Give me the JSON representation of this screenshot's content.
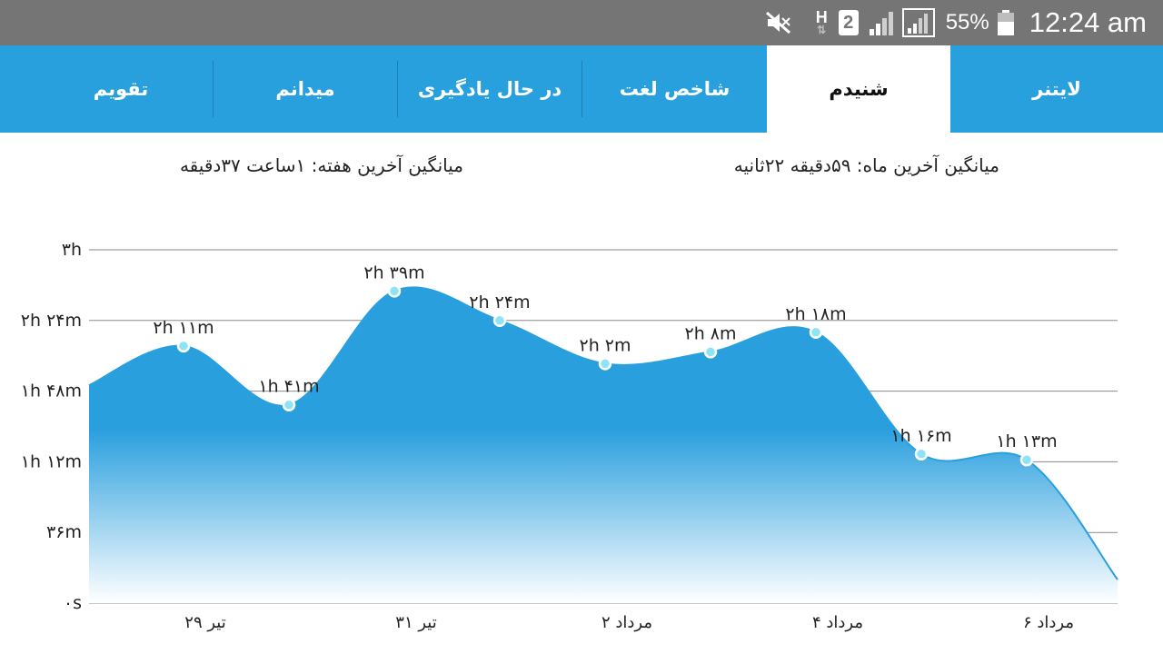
{
  "status_bar": {
    "battery_percent": "55%",
    "time": "12:24 am",
    "sim_slot": "2",
    "network_type": "H",
    "icons": [
      "mute-icon",
      "network-h-icon",
      "sim-2-icon",
      "signal-icon",
      "signal-icon",
      "battery-icon"
    ]
  },
  "tabs": [
    {
      "label": "لایتنر",
      "active": false
    },
    {
      "label": "شنیدم",
      "active": true
    },
    {
      "label": "شاخص لغت",
      "active": false
    },
    {
      "label": "در حال یادگیری",
      "active": false
    },
    {
      "label": "میدانم",
      "active": false
    },
    {
      "label": "تقویم",
      "active": false
    }
  ],
  "colors": {
    "status_bar": "#757575",
    "tab_bar": "#28a0dd",
    "active_tab": "#ffffff",
    "area_top": "#2a9fde",
    "line": "#2a9fde",
    "point_fill": "#8fe3f7"
  },
  "averages": {
    "month_label": "میانگین آخرین ماه:",
    "month_value": "۵۹دقیقه  ۲۲ثانیه",
    "week_label": "میانگین آخرین هفته:",
    "week_value": "۱ساعت  ۳۷دقیقه"
  },
  "chart_data": {
    "type": "area",
    "y_unit": "minutes",
    "ylim": [
      0,
      180
    ],
    "yticks": [
      {
        "value": 0,
        "label": "۰s"
      },
      {
        "value": 36,
        "label": "۳۶m"
      },
      {
        "value": 72,
        "label": "۱h ۱۲m"
      },
      {
        "value": 108,
        "label": "۱h ۴۸m"
      },
      {
        "value": 144,
        "label": "۲h ۲۴m"
      },
      {
        "value": 180,
        "label": "۳h"
      }
    ],
    "xticks": [
      "۲۹ تیر",
      "۳۱ تیر",
      "۲ مرداد",
      "۴ مرداد",
      "۶ مرداد"
    ],
    "grid": true,
    "start_value": 111,
    "end_value": 12,
    "points": [
      {
        "value": 131,
        "label": "۲h ۱۱m"
      },
      {
        "value": 101,
        "label": "۱h ۴۱m"
      },
      {
        "value": 159,
        "label": "۲h ۳۹m"
      },
      {
        "value": 144,
        "label": "۲h ۲۴m"
      },
      {
        "value": 122,
        "label": "۲h ۲m"
      },
      {
        "value": 128,
        "label": "۲h ۸m"
      },
      {
        "value": 138,
        "label": "۲h ۱۸m"
      },
      {
        "value": 76,
        "label": "۱h ۱۶m"
      },
      {
        "value": 73,
        "label": "۱h ۱۳m"
      }
    ]
  }
}
